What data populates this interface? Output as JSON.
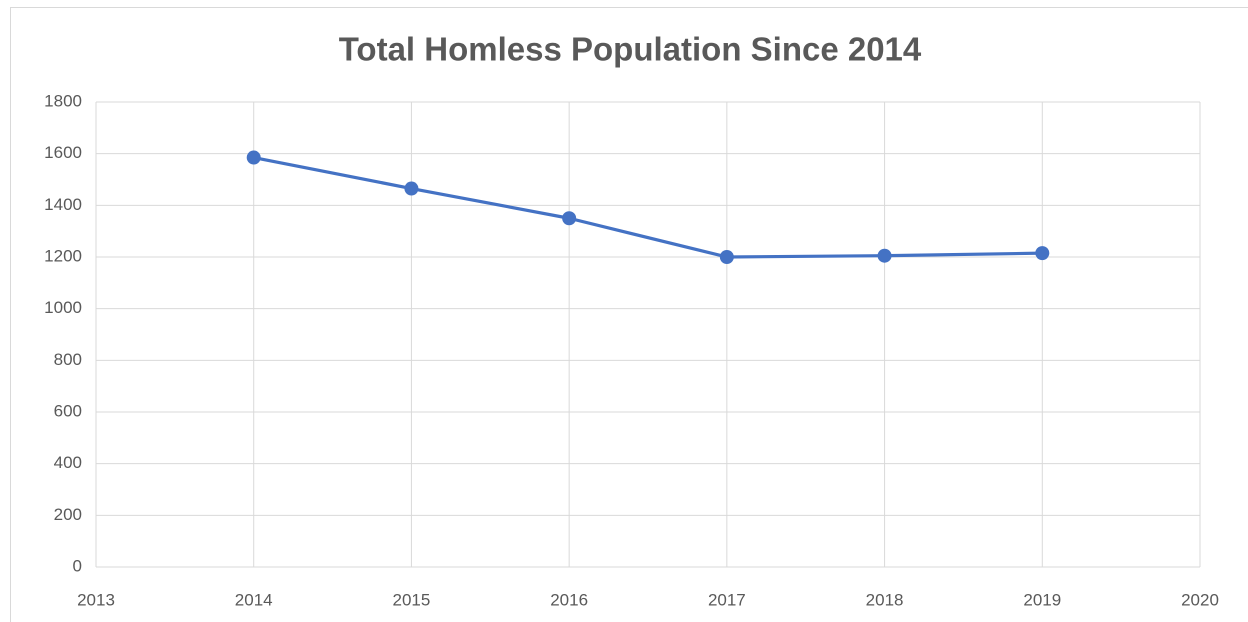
{
  "chart_data": {
    "type": "line",
    "title": "Total Homless Population Since 2014",
    "x": [
      2014,
      2015,
      2016,
      2017,
      2018,
      2019
    ],
    "series": [
      {
        "color": "#4472c4",
        "values": [
          1585,
          1465,
          1350,
          1200,
          1205,
          1215
        ]
      }
    ],
    "xlim": [
      2013,
      2020
    ],
    "xticks": [
      2013,
      2014,
      2015,
      2016,
      2017,
      2018,
      2019,
      2020
    ],
    "ylim": [
      0,
      1800
    ],
    "yticks": [
      0,
      200,
      400,
      600,
      800,
      1000,
      1200,
      1400,
      1600,
      1800
    ],
    "grid": true
  }
}
